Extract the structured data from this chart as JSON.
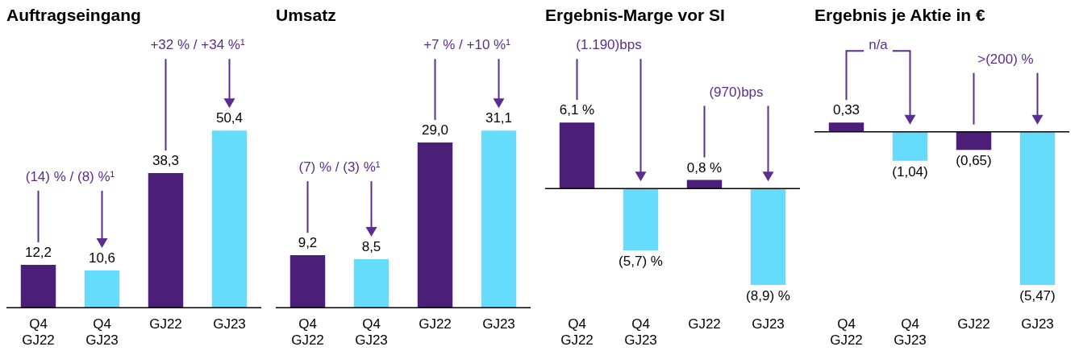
{
  "chart_data": [
    {
      "type": "bar",
      "title": "Auftragseingang",
      "categories": [
        "Q4 GJ22",
        "Q4 GJ23",
        "GJ22",
        "GJ23"
      ],
      "values": [
        12.2,
        10.6,
        38.3,
        50.4
      ],
      "colors": [
        "#4b1f78",
        "#66dcfc",
        "#4b1f78",
        "#66dcfc"
      ],
      "value_labels": [
        "12,2",
        "10,6",
        "38,3",
        "50,4"
      ],
      "tick_labels": "x",
      "annotations": [
        "(14) % / (8) %¹",
        "+32 % / +34 %¹"
      ]
    },
    {
      "type": "bar",
      "title": "Umsatz",
      "categories": [
        "Q4 GJ22",
        "Q4 GJ23",
        "GJ22",
        "GJ23"
      ],
      "values": [
        9.2,
        8.5,
        29.0,
        31.1
      ],
      "colors": [
        "#4b1f78",
        "#66dcfc",
        "#4b1f78",
        "#66dcfc"
      ],
      "value_labels": [
        "9,2",
        "8,5",
        "29,0",
        "31,1"
      ],
      "tick_labels": "x",
      "annotations": [
        "(7) % / (3) %¹",
        "+7 % / +10 %¹"
      ]
    },
    {
      "type": "bar",
      "title": "Ergebnis-Marge vor SI",
      "categories": [
        "Q4 GJ22",
        "Q4 GJ23",
        "GJ22",
        "GJ23"
      ],
      "values": [
        6.1,
        -5.7,
        0.8,
        -8.9
      ],
      "colors": [
        "#4b1f78",
        "#66dcfc",
        "#4b1f78",
        "#66dcfc"
      ],
      "value_labels": [
        "6,1 %",
        "(5,7) %",
        "0,8 %",
        "(8,9) %"
      ],
      "tick_labels": "x",
      "annotations": [
        "(1.190)bps",
        "(970)bps"
      ]
    },
    {
      "type": "bar",
      "title": "Ergebnis je Aktie in €",
      "categories": [
        "Q4 GJ22",
        "Q4 GJ23",
        "GJ22",
        "GJ23"
      ],
      "values": [
        0.33,
        -1.04,
        -0.65,
        -5.47
      ],
      "colors": [
        "#4b1f78",
        "#66dcfc",
        "#4b1f78",
        "#66dcfc"
      ],
      "value_labels": [
        "0,33",
        "(1,04)",
        "(0,65)",
        "(5,47)"
      ],
      "tick_labels": "x",
      "annotations": [
        "n/a",
        ">(200) %"
      ]
    }
  ]
}
